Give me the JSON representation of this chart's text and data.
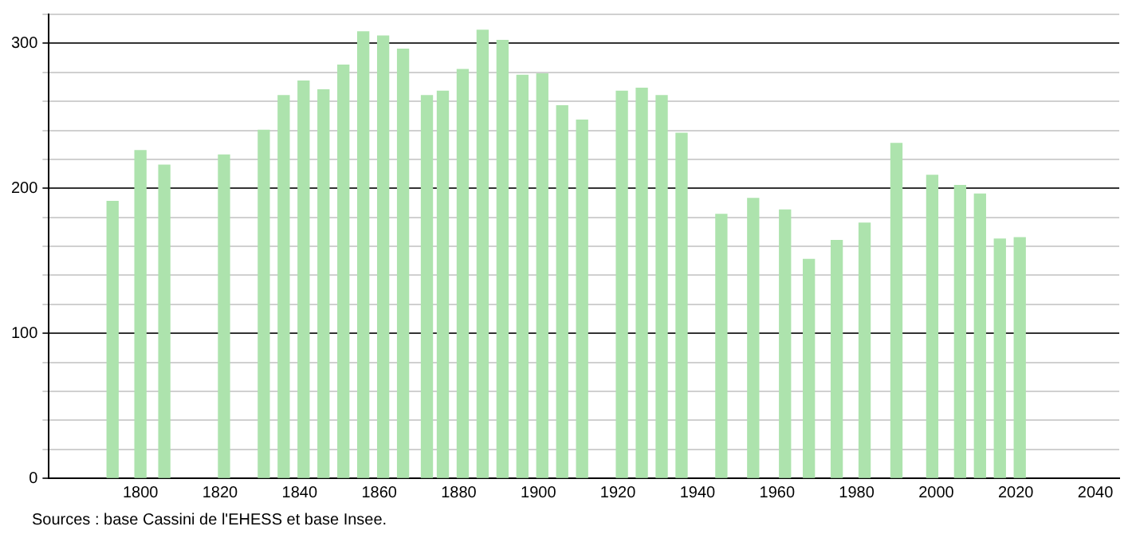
{
  "chart_data": {
    "type": "bar",
    "color": "#ade3ad",
    "x": [
      1793,
      1800,
      1806,
      1821,
      1831,
      1836,
      1841,
      1846,
      1851,
      1856,
      1861,
      1866,
      1872,
      1876,
      1881,
      1886,
      1891,
      1896,
      1901,
      1906,
      1911,
      1921,
      1926,
      1931,
      1936,
      1946,
      1954,
      1962,
      1968,
      1975,
      1982,
      1990,
      1999,
      2006,
      2011,
      2016,
      2021
    ],
    "values": [
      191,
      226,
      216,
      223,
      240,
      264,
      274,
      268,
      285,
      308,
      305,
      296,
      264,
      267,
      282,
      309,
      302,
      278,
      279,
      257,
      247,
      267,
      269,
      264,
      238,
      182,
      193,
      185,
      151,
      164,
      176,
      231,
      209,
      202,
      196,
      165,
      166
    ],
    "xlim": [
      1777,
      2046
    ],
    "xticks": [
      1800,
      1820,
      1840,
      1860,
      1880,
      1900,
      1920,
      1940,
      1960,
      1980,
      2000,
      2020,
      2040
    ],
    "ylim": [
      0,
      320
    ],
    "yticks": [
      0,
      {
        "value": 20,
        "label": null
      },
      {
        "value": 40,
        "label": null
      },
      {
        "value": 60,
        "label": null
      },
      {
        "value": 80,
        "label": null
      },
      100,
      {
        "value": 120,
        "label": null
      },
      {
        "value": 140,
        "label": null
      },
      {
        "value": 160,
        "label": null
      },
      {
        "value": 180,
        "label": null
      },
      200,
      {
        "value": 220,
        "label": null
      },
      {
        "value": 240,
        "label": null
      },
      {
        "value": 260,
        "label": null
      },
      {
        "value": 280,
        "label": null
      },
      300,
      {
        "value": 320,
        "label": null
      }
    ],
    "grid": "y",
    "legend": false,
    "annotations": [
      "Sources : base Cassini de l'EHESS et base Insee."
    ]
  }
}
